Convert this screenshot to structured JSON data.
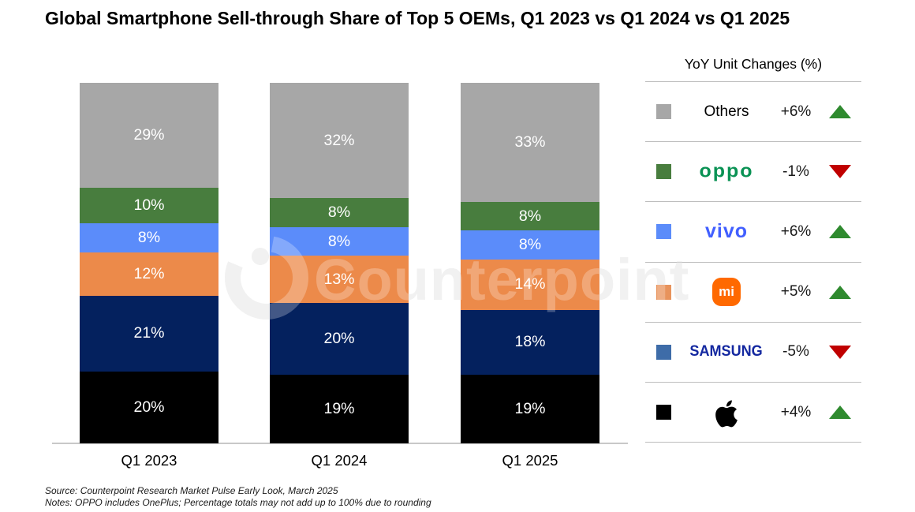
{
  "title": "Global Smartphone Sell-through Share of Top 5 OEMs, Q1 2023 vs Q1 2024 vs Q1 2025",
  "watermark": {
    "text": "Counterpoint"
  },
  "chart_data": {
    "type": "bar",
    "stacked": true,
    "title": "Global Smartphone Sell-through Share of Top 5 OEMs, Q1 2023 vs Q1 2024 vs Q1 2025",
    "categories": [
      "Q1 2023",
      "Q1 2024",
      "Q1 2025"
    ],
    "series": [
      {
        "name": "Others",
        "color": "#a7a7a7",
        "values": [
          29,
          32,
          33
        ]
      },
      {
        "name": "OPPO",
        "color": "#487d3e",
        "values": [
          10,
          8,
          8
        ]
      },
      {
        "name": "vivo",
        "color": "#5b8cfa",
        "values": [
          8,
          8,
          8
        ]
      },
      {
        "name": "Xiaomi",
        "color": "#ec8a4a",
        "values": [
          12,
          13,
          14
        ]
      },
      {
        "name": "Samsung",
        "color": "#04215e",
        "values": [
          21,
          20,
          18
        ]
      },
      {
        "name": "Apple",
        "color": "#000000",
        "values": [
          20,
          19,
          19
        ]
      }
    ],
    "value_suffix": "%",
    "ylim": [
      0,
      100
    ],
    "grid": false,
    "legend_position": "right"
  },
  "legend": {
    "header": "YoY Unit Changes (%)",
    "up_color": "#2f8a2f",
    "down_color": "#c00000",
    "rows": [
      {
        "brand": "Others",
        "logo": "text",
        "logo_text": "Others",
        "logo_color": "#000000",
        "square_color": "#a7a7a7",
        "change": "+6%",
        "direction": "up"
      },
      {
        "brand": "OPPO",
        "logo": "oppo",
        "logo_text": "oppo",
        "logo_color": "#0a9254",
        "square_color": "#487d3e",
        "change": "-1%",
        "direction": "down"
      },
      {
        "brand": "vivo",
        "logo": "vivo",
        "logo_text": "vivo",
        "logo_color": "#415fff",
        "square_color": "#5b8cfa",
        "change": "+6%",
        "direction": "up"
      },
      {
        "brand": "Xiaomi",
        "logo": "mi",
        "logo_text": "mi",
        "logo_color": "#ff6900",
        "square_color": "#e8935c",
        "change": "+5%",
        "direction": "up"
      },
      {
        "brand": "Samsung",
        "logo": "samsung",
        "logo_text": "SAMSUNG",
        "logo_color": "#1428a0",
        "square_color": "#3e6ca8",
        "change": "-5%",
        "direction": "down"
      },
      {
        "brand": "Apple",
        "logo": "apple",
        "logo_text": "",
        "logo_color": "#000000",
        "square_color": "#000000",
        "change": "+4%",
        "direction": "up"
      }
    ]
  },
  "footer": {
    "source": "Source: Counterpoint Research Market Pulse Early Look, March 2025",
    "notes": "Notes: OPPO includes OnePlus; Percentage totals may not add up to 100% due to rounding"
  }
}
